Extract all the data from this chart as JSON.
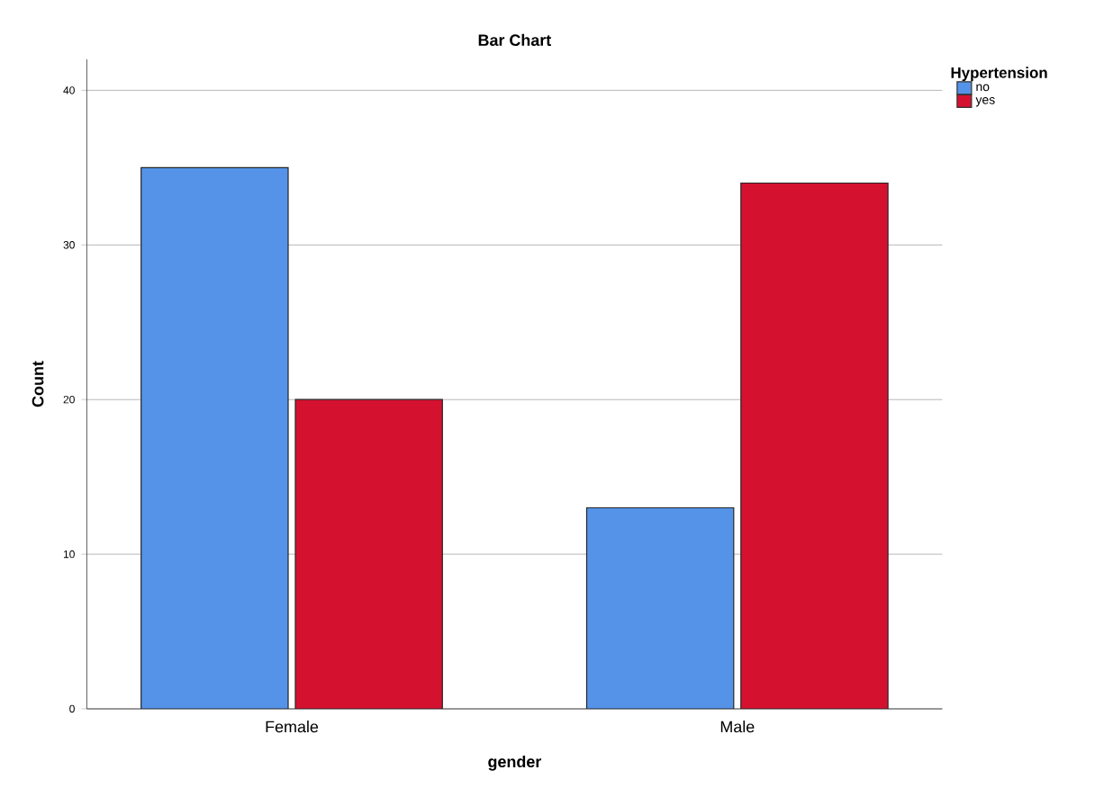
{
  "chart_data": {
    "type": "bar",
    "title": "Bar Chart",
    "xlabel": "gender",
    "ylabel": "Count",
    "legend_title": "Hypertension",
    "categories": [
      "Female",
      "Male"
    ],
    "series": [
      {
        "name": "no",
        "color": "#5593e8",
        "values": [
          35,
          13
        ]
      },
      {
        "name": "yes",
        "color": "#d51130",
        "values": [
          20,
          34
        ]
      }
    ],
    "ylim": [
      0,
      42
    ],
    "yticks": [
      0,
      10,
      20,
      30,
      40
    ],
    "grid": "y",
    "legend": "top right"
  }
}
